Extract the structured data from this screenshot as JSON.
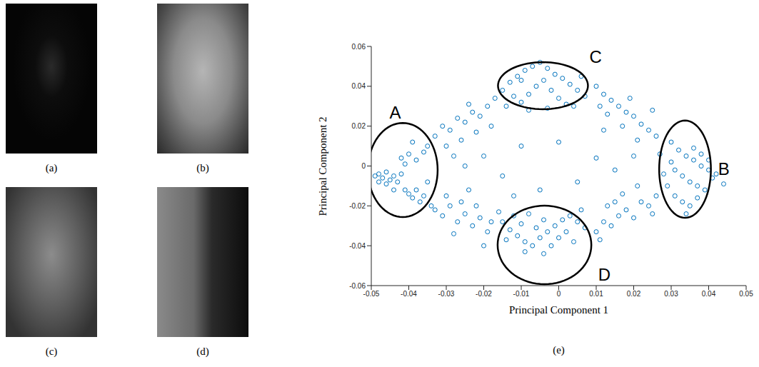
{
  "image_captions": [
    "(a)",
    "(b)",
    "(c)",
    "(d)"
  ],
  "chart_data": {
    "type": "scatter",
    "caption": "(e)",
    "x_label": "Principal Component 1",
    "y_label": "Principal Component 2",
    "xlim": [
      -0.05,
      0.05
    ],
    "xticks": [
      -0.05,
      -0.04,
      -0.03,
      -0.02,
      -0.01,
      0,
      0.01,
      0.02,
      0.03,
      0.04,
      0.05
    ],
    "ylim": [
      -0.06,
      0.06
    ],
    "yticks": [
      -0.06,
      -0.04,
      -0.02,
      0,
      0.02,
      0.04,
      0.06
    ],
    "color": "#0072bd",
    "marker": "circle",
    "x": [
      -0.048,
      -0.047,
      -0.046,
      -0.045,
      -0.044,
      -0.043,
      -0.042,
      -0.041,
      -0.04,
      -0.039,
      -0.038,
      -0.037,
      -0.036,
      -0.044,
      -0.046,
      -0.042,
      -0.04,
      -0.038,
      -0.036,
      -0.035,
      -0.039,
      -0.041,
      -0.034,
      -0.035,
      -0.048,
      -0.049,
      0.03,
      0.032,
      0.034,
      0.036,
      0.038,
      0.04,
      0.042,
      0.044,
      0.031,
      0.033,
      0.035,
      0.037,
      0.039,
      0.041,
      0.029,
      0.031,
      0.033,
      0.035,
      0.037,
      0.03,
      0.028,
      0.036,
      0.038,
      0.034,
      0.04,
      0.027,
      -0.015,
      -0.013,
      -0.011,
      -0.009,
      -0.007,
      -0.005,
      -0.003,
      -0.001,
      0.001,
      0.003,
      0.005,
      0.007,
      -0.012,
      -0.01,
      -0.008,
      -0.006,
      -0.004,
      -0.002,
      0.0,
      0.002,
      0.004,
      -0.014,
      -0.008,
      -0.003,
      0.006,
      -0.01,
      -0.015,
      -0.013,
      -0.011,
      -0.009,
      -0.007,
      -0.005,
      -0.003,
      -0.001,
      0.001,
      0.003,
      0.005,
      0.007,
      -0.012,
      -0.01,
      -0.008,
      -0.006,
      -0.004,
      -0.002,
      0.0,
      0.002,
      0.004,
      -0.014,
      -0.009,
      -0.004,
      0.006,
      -0.016,
      -0.033,
      -0.031,
      -0.029,
      -0.027,
      -0.025,
      -0.023,
      -0.021,
      -0.019,
      -0.03,
      -0.026,
      -0.022,
      -0.018,
      -0.028,
      -0.017,
      -0.024,
      -0.033,
      -0.031,
      -0.029,
      -0.027,
      -0.025,
      -0.023,
      -0.021,
      -0.019,
      -0.03,
      -0.026,
      -0.022,
      -0.018,
      -0.028,
      -0.02,
      -0.024,
      0.01,
      0.012,
      0.014,
      0.016,
      0.018,
      0.02,
      0.022,
      0.024,
      0.026,
      0.013,
      0.017,
      0.021,
      0.011,
      0.019,
      0.025,
      0.01,
      0.012,
      0.014,
      0.016,
      0.018,
      0.02,
      0.022,
      0.024,
      0.026,
      0.013,
      0.017,
      0.021,
      0.011,
      0.015,
      0.025,
      -0.02,
      -0.015,
      -0.01,
      -0.005,
      0.0,
      0.005,
      0.01,
      0.015,
      0.012,
      -0.012,
      -0.025,
      0.02
    ],
    "values": [
      -0.004,
      -0.006,
      -0.003,
      -0.007,
      -0.005,
      -0.008,
      -0.004,
      -0.012,
      -0.014,
      -0.016,
      -0.012,
      -0.018,
      -0.015,
      -0.012,
      -0.009,
      0.004,
      0.006,
      0.003,
      0.007,
      0.01,
      0.012,
      0.001,
      -0.02,
      -0.008,
      -0.008,
      -0.005,
      0.012,
      0.008,
      0.005,
      0.003,
      0.0,
      -0.002,
      -0.004,
      -0.009,
      -0.002,
      -0.005,
      -0.008,
      -0.01,
      -0.012,
      -0.006,
      -0.01,
      -0.015,
      -0.018,
      -0.02,
      -0.016,
      0.002,
      -0.004,
      0.009,
      0.006,
      -0.024,
      0.003,
      0.006,
      0.038,
      0.042,
      0.045,
      0.048,
      0.05,
      0.052,
      0.049,
      0.046,
      0.044,
      0.041,
      0.038,
      0.035,
      0.035,
      0.032,
      0.036,
      0.04,
      0.043,
      0.038,
      0.034,
      0.031,
      0.03,
      0.03,
      0.028,
      0.029,
      0.045,
      0.043,
      -0.028,
      -0.032,
      -0.035,
      -0.038,
      -0.04,
      -0.036,
      -0.033,
      -0.03,
      -0.027,
      -0.025,
      -0.028,
      -0.031,
      -0.025,
      -0.029,
      -0.024,
      -0.031,
      -0.027,
      -0.04,
      -0.036,
      -0.033,
      -0.038,
      -0.037,
      -0.043,
      -0.044,
      -0.022,
      -0.023,
      0.015,
      0.02,
      0.018,
      0.024,
      0.022,
      0.027,
      0.025,
      0.03,
      0.01,
      0.013,
      0.017,
      0.02,
      0.005,
      0.034,
      0.031,
      -0.022,
      -0.025,
      -0.02,
      -0.028,
      -0.024,
      -0.03,
      -0.026,
      -0.033,
      -0.015,
      -0.018,
      -0.02,
      -0.028,
      -0.034,
      -0.04,
      -0.012,
      0.04,
      0.036,
      0.033,
      0.03,
      0.027,
      0.025,
      0.021,
      0.018,
      0.015,
      0.026,
      0.02,
      0.013,
      0.03,
      0.034,
      0.028,
      -0.033,
      -0.028,
      -0.03,
      -0.025,
      -0.022,
      -0.026,
      -0.018,
      -0.02,
      -0.015,
      -0.02,
      -0.014,
      -0.01,
      -0.037,
      -0.018,
      -0.024,
      0.005,
      -0.005,
      0.01,
      -0.012,
      0.012,
      -0.008,
      0.004,
      -0.002,
      0.018,
      -0.015,
      0.0,
      0.005
    ],
    "regions": [
      {
        "label": "A",
        "x": -0.0416,
        "y": -0.002,
        "rx": 0.0093,
        "ry": 0.0236
      },
      {
        "label": "B",
        "x": 0.0337,
        "y": -0.0016,
        "rx": 0.0069,
        "ry": 0.0244
      },
      {
        "label": "C",
        "x": -0.0042,
        "y": 0.0403,
        "rx": 0.012,
        "ry": 0.0118
      },
      {
        "label": "D",
        "x": -0.0038,
        "y": -0.0396,
        "rx": 0.0125,
        "ry": 0.0197
      }
    ]
  }
}
